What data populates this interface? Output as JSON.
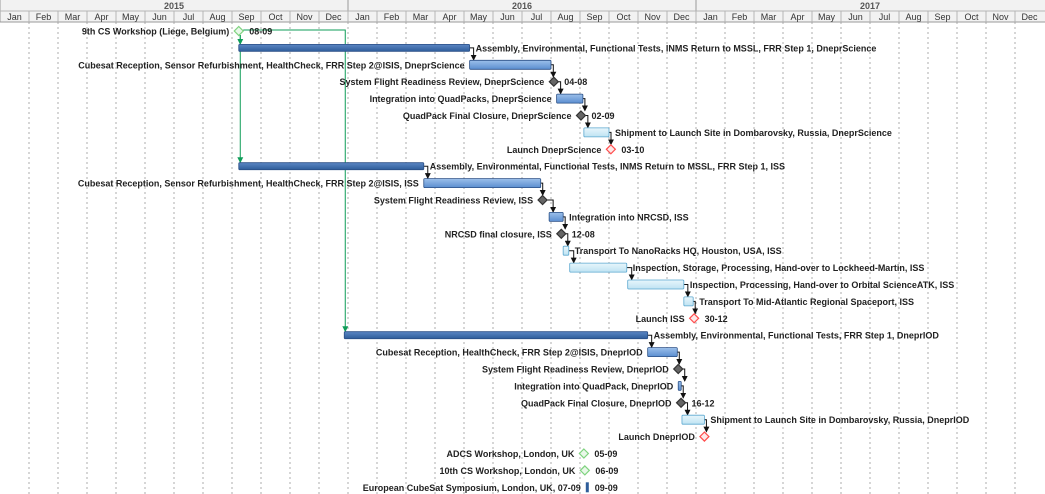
{
  "chart_data": {
    "type": "gantt",
    "years": [
      {
        "label": "2015",
        "start": "2015-01-01",
        "end": "2016-01-01"
      },
      {
        "label": "2016",
        "start": "2016-01-01",
        "end": "2017-01-01"
      },
      {
        "label": "2017",
        "start": "2017-01-01",
        "end": "2018-01-01"
      }
    ],
    "months": [
      "Jan",
      "Feb",
      "Mar",
      "Apr",
      "May",
      "Jun",
      "Jul",
      "Aug",
      "Sep",
      "Oct",
      "Nov",
      "Dec"
    ],
    "colors": {
      "summary_bar": "#2e5d9a",
      "task_bar": "#5b8ed0",
      "task_bar_light": "#bfe3f2",
      "milestone": "#666666",
      "deadline": "#ff4d4d",
      "event": "#7fd37f",
      "link": "#0f9d58",
      "arrow": "#111111"
    },
    "tasks": [
      {
        "label": "9th CS Workshop (Liege, Belgium)",
        "kind": "event",
        "start": "2015-09-08",
        "date_label": "08-09",
        "label_side": "left"
      },
      {
        "label": "Assembly, Environmental, Functional Tests, INMS Return to MSSL, FRR Step 1, DneprScience",
        "kind": "summary",
        "start": "2015-09-08",
        "end": "2016-05-07",
        "label_side": "right"
      },
      {
        "label": "Cubesat Reception, Sensor Refurbishment, HealthCheck, FRR Step 2@ISIS, DneprScience",
        "kind": "task",
        "start": "2016-05-07",
        "end": "2016-08-01",
        "label_side": "left"
      },
      {
        "label": "System Flight Readiness Review, DneprScience",
        "kind": "milestone",
        "start": "2016-08-04",
        "date_label": "04-08",
        "label_side": "left"
      },
      {
        "label": "Integration into QuadPacks, DneprScience",
        "kind": "task",
        "start": "2016-08-07",
        "end": "2016-09-04",
        "label_side": "left"
      },
      {
        "label": "QuadPack Final Closure, DneprScience",
        "kind": "milestone",
        "start": "2016-09-02",
        "date_label": "02-09",
        "label_side": "left"
      },
      {
        "label": "Shipment to Launch Site in Dombarovsky, Russia, DneprScience",
        "kind": "task_light",
        "start": "2016-09-05",
        "end": "2016-10-01",
        "label_side": "right"
      },
      {
        "label": "Launch DneprScience",
        "kind": "deadline",
        "start": "2016-10-03",
        "date_label": "03-10",
        "label_side": "left"
      },
      {
        "label": "Assembly, Environmental, Functional Tests, INMS Return to MSSL, FRR Step 1, ISS",
        "kind": "summary",
        "start": "2015-09-08",
        "end": "2016-03-20",
        "label_side": "right"
      },
      {
        "label": "Cubesat Reception, Sensor Refurbishment, HealthCheck, FRR Step 2@ISIS, ISS",
        "kind": "task",
        "start": "2016-03-20",
        "end": "2016-07-21",
        "label_side": "left"
      },
      {
        "label": "System Flight Readiness Review, ISS",
        "kind": "milestone",
        "start": "2016-07-23",
        "label_side": "left"
      },
      {
        "label": "Integration into NRCSD, ISS",
        "kind": "task",
        "start": "2016-07-30",
        "end": "2016-08-14",
        "label_side": "right"
      },
      {
        "label": "NRCSD final closure, ISS",
        "kind": "milestone",
        "start": "2016-08-12",
        "date_label": "12-08",
        "label_side": "left"
      },
      {
        "label": "Transport To NanoRacks HQ, Houston, USA, ISS",
        "kind": "task_light",
        "start": "2016-08-14",
        "end": "2016-08-20",
        "label_side": "right"
      },
      {
        "label": "Inspection, Storage, Processing, Hand-over to Lockheed-Martin, ISS",
        "kind": "task_light",
        "start": "2016-08-21",
        "end": "2016-10-20",
        "label_side": "right"
      },
      {
        "label": "Inspection, Processing, Hand-over to Orbital ScienceATK, ISS",
        "kind": "task_light",
        "start": "2016-10-21",
        "end": "2016-12-19",
        "label_side": "right"
      },
      {
        "label": "Transport To Mid-Atlantic Regional Spaceport, ISS",
        "kind": "task_light",
        "start": "2016-12-19",
        "end": "2016-12-29",
        "label_side": "right"
      },
      {
        "label": "Launch ISS",
        "kind": "deadline",
        "start": "2016-12-30",
        "date_label": "30-12",
        "label_side": "left"
      },
      {
        "label": "Assembly, Environmental, Functional Tests, FRR Step 1, DneprIOD",
        "kind": "summary",
        "start": "2015-12-28",
        "end": "2016-11-11",
        "label_side": "right"
      },
      {
        "label": "Cubesat Reception, HealthCheck, FRR Step 2@ISIS, DneprIOD",
        "kind": "task",
        "start": "2016-11-11",
        "end": "2016-12-12",
        "label_side": "left"
      },
      {
        "label": "System Flight Readiness Review, DneprIOD",
        "kind": "milestone",
        "start": "2016-12-13",
        "label_side": "left"
      },
      {
        "label": "Integration into QuadPack, DneprIOD",
        "kind": "task",
        "start": "2016-12-13",
        "end": "2016-12-16",
        "label_side": "left"
      },
      {
        "label": "QuadPack Final Closure, DneprIOD",
        "kind": "milestone",
        "start": "2016-12-16",
        "date_label": "16-12",
        "label_side": "left"
      },
      {
        "label": "Shipment to Launch Site in Dombarovsky, Russia, DneprIOD",
        "kind": "task_light",
        "start": "2016-12-17",
        "end": "2017-01-10",
        "label_side": "right"
      },
      {
        "label": "Launch DneprIOD",
        "kind": "deadline",
        "start": "2017-01-10",
        "label_side": "left"
      },
      {
        "label": "ADCS Workshop, London, UK",
        "kind": "event",
        "start": "2016-09-05",
        "date_label": "05-09",
        "label_side": "left"
      },
      {
        "label": "10th CS Workshop, London, UK",
        "kind": "event",
        "start": "2016-09-06",
        "date_label": "06-09",
        "label_side": "left"
      },
      {
        "label": "European CubeSat Symposium, London, UK, 07-09",
        "kind": "symposium",
        "start": "2016-09-07",
        "end": "2016-09-09",
        "date_label": "09-09",
        "label_side": "left"
      }
    ],
    "links": [
      [
        0,
        1
      ],
      [
        1,
        2
      ],
      [
        2,
        3
      ],
      [
        3,
        4
      ],
      [
        4,
        5
      ],
      [
        5,
        6
      ],
      [
        6,
        7
      ],
      [
        0,
        8
      ],
      [
        8,
        9
      ],
      [
        9,
        10
      ],
      [
        10,
        11
      ],
      [
        11,
        12
      ],
      [
        12,
        13
      ],
      [
        13,
        14
      ],
      [
        14,
        15
      ],
      [
        15,
        16
      ],
      [
        16,
        17
      ],
      [
        0,
        18
      ],
      [
        18,
        19
      ],
      [
        19,
        20
      ],
      [
        20,
        21
      ],
      [
        21,
        22
      ],
      [
        22,
        23
      ],
      [
        23,
        24
      ]
    ]
  }
}
